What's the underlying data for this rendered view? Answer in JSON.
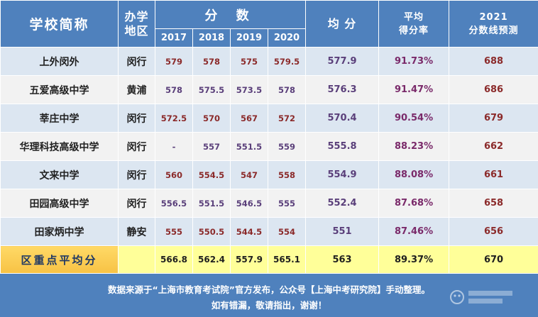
{
  "header": {
    "school": "学校简称",
    "district_line1": "办学",
    "district_line2": "地区",
    "scores": "分 数",
    "years": [
      "2017",
      "2018",
      "2019",
      "2020"
    ],
    "average": "均 分",
    "rate_line1": "平均",
    "rate_line2": "得分率",
    "pred_line1": "2021",
    "pred_line2": "分数线预测"
  },
  "rows": [
    {
      "name": "上外闵外",
      "district": "闵行",
      "y2017": "579",
      "y2018": "578",
      "y2019": "575",
      "y2020": "579.5",
      "avg": "577.9",
      "rate": "91.73%",
      "pred": "688"
    },
    {
      "name": "五爱高级中学",
      "district": "黄浦",
      "y2017": "578",
      "y2018": "575.5",
      "y2019": "573.5",
      "y2020": "578",
      "avg": "576.3",
      "rate": "91.47%",
      "pred": "686"
    },
    {
      "name": "莘庄中学",
      "district": "闵行",
      "y2017": "572.5",
      "y2018": "570",
      "y2019": "567",
      "y2020": "572",
      "avg": "570.4",
      "rate": "90.54%",
      "pred": "679"
    },
    {
      "name": "华理科技高级中学",
      "district": "闵行",
      "y2017": "-",
      "y2018": "557",
      "y2019": "551.5",
      "y2020": "559",
      "avg": "555.8",
      "rate": "88.23%",
      "pred": "662"
    },
    {
      "name": "文来中学",
      "district": "闵行",
      "y2017": "560",
      "y2018": "554.5",
      "y2019": "547",
      "y2020": "558",
      "avg": "554.9",
      "rate": "88.08%",
      "pred": "661"
    },
    {
      "name": "田园高级中学",
      "district": "闵行",
      "y2017": "556.5",
      "y2018": "551.5",
      "y2019": "546.5",
      "y2020": "555",
      "avg": "552.4",
      "rate": "87.68%",
      "pred": "658"
    },
    {
      "name": "田家炳中学",
      "district": "静安",
      "y2017": "555",
      "y2018": "550.5",
      "y2019": "544.5",
      "y2020": "554",
      "avg": "551",
      "rate": "87.46%",
      "pred": "656"
    }
  ],
  "summary": {
    "label": "区重点平均分",
    "y2017": "566.8",
    "y2018": "562.4",
    "y2019": "557.9",
    "y2020": "565.1",
    "avg": "563",
    "rate": "89.37%",
    "pred": "670"
  },
  "footer": {
    "line1": "数据来源于“上海市教育考试院”官方发布，公众号【上海中考研究院】手动整理。",
    "line2": "如有错漏，敬请指出，谢谢！"
  },
  "colors": {
    "header_bg": "#4f81bd",
    "row_alt_bg": "#dce6f1",
    "row_bg": "#f2f2f2",
    "summary_bg": "#ffff99",
    "summary_label_bg": "#f7c244"
  }
}
